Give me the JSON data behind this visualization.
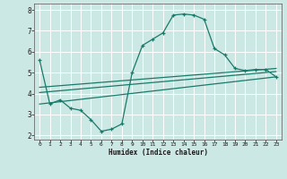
{
  "xlabel": "Humidex (Indice chaleur)",
  "xlim": [
    -0.5,
    23.5
  ],
  "ylim": [
    1.8,
    8.3
  ],
  "yticks": [
    2,
    3,
    4,
    5,
    6,
    7,
    8
  ],
  "xticks": [
    0,
    1,
    2,
    3,
    4,
    5,
    6,
    7,
    8,
    9,
    10,
    11,
    12,
    13,
    14,
    15,
    16,
    17,
    18,
    19,
    20,
    21,
    22,
    23
  ],
  "bg_color": "#cce8e4",
  "grid_color": "#ffffff",
  "line_color": "#1a7a6a",
  "line1_x": [
    0,
    1,
    2,
    3,
    4,
    5,
    6,
    7,
    8,
    9,
    10,
    11,
    12,
    13,
    14,
    15,
    16,
    17,
    18,
    19,
    20,
    21,
    22,
    23
  ],
  "line1_y": [
    5.6,
    3.5,
    3.7,
    3.3,
    3.2,
    2.75,
    2.2,
    2.3,
    2.55,
    5.0,
    6.3,
    6.6,
    6.9,
    7.75,
    7.8,
    7.75,
    7.55,
    6.15,
    5.85,
    5.2,
    5.1,
    5.15,
    5.15,
    4.8
  ],
  "line2_x": [
    0,
    23
  ],
  "line2_y": [
    3.5,
    4.8
  ],
  "line3_x": [
    0,
    23
  ],
  "line3_y": [
    4.05,
    5.05
  ],
  "line4_x": [
    0,
    23
  ],
  "line4_y": [
    4.3,
    5.2
  ]
}
